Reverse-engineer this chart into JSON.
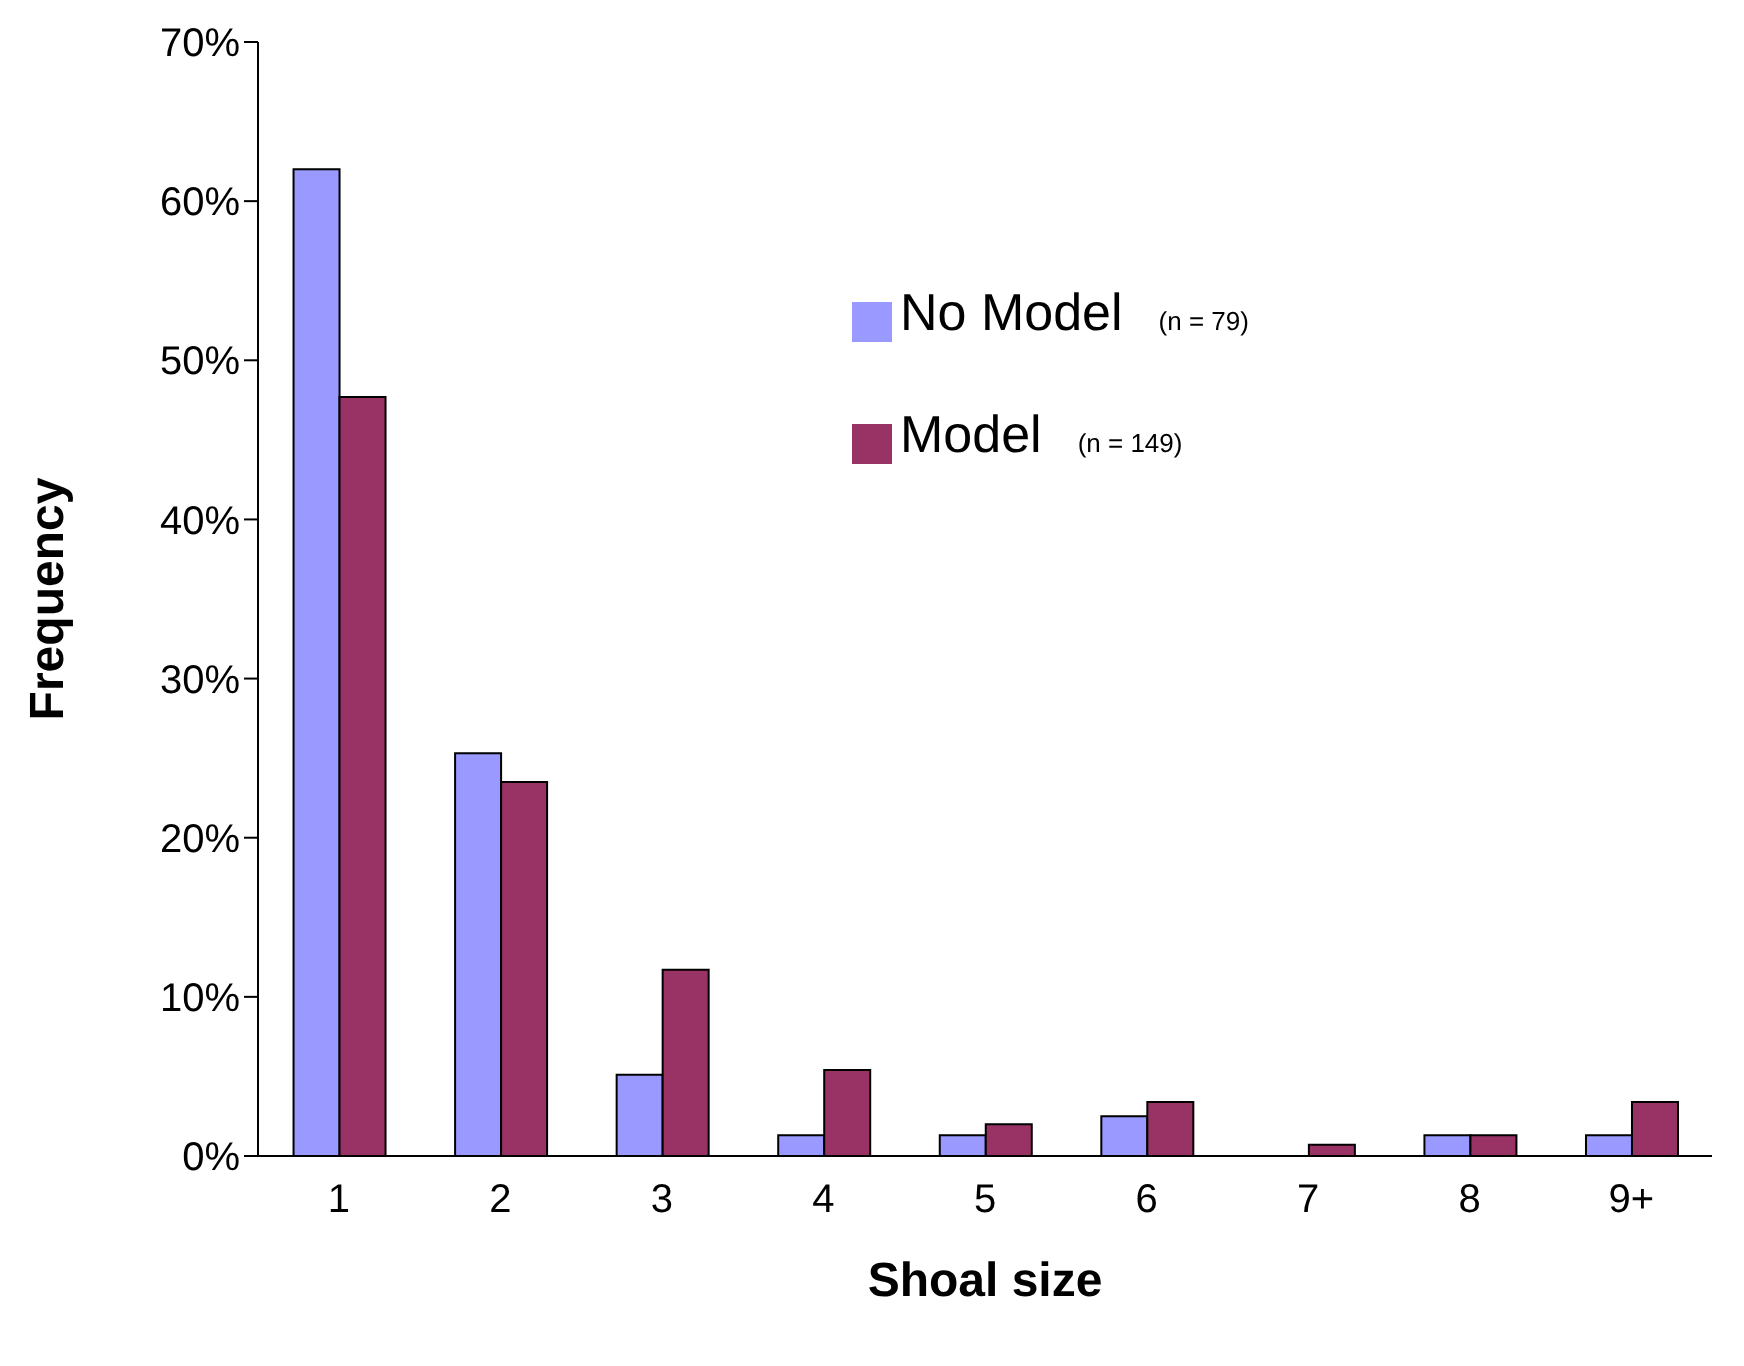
{
  "chart_data": {
    "type": "bar",
    "xlabel": "Shoal size",
    "ylabel": "Frequency",
    "categories": [
      "1",
      "2",
      "3",
      "4",
      "5",
      "6",
      "7",
      "8",
      "9+"
    ],
    "series": [
      {
        "name": "No Model",
        "color": "#9999ff",
        "values": [
          62.0,
          25.3,
          5.1,
          1.3,
          1.3,
          2.5,
          0,
          1.3,
          1.3
        ]
      },
      {
        "name": "Model",
        "color": "#993366",
        "values": [
          47.7,
          23.5,
          11.7,
          5.4,
          2.0,
          3.4,
          0.7,
          1.3,
          3.4
        ]
      }
    ],
    "annotations": [
      "(n = 79)",
      "(n = 149)"
    ],
    "ylim": [
      0,
      70
    ],
    "yticks": [
      {
        "value": 0,
        "label": "0%"
      },
      {
        "value": 10,
        "label": "10%"
      },
      {
        "value": 20,
        "label": "20%"
      },
      {
        "value": 30,
        "label": "30%"
      },
      {
        "value": 40,
        "label": "40%"
      },
      {
        "value": 50,
        "label": "50%"
      },
      {
        "value": 60,
        "label": "60%"
      },
      {
        "value": 70,
        "label": "70%"
      }
    ],
    "grid": false,
    "legend": "top right"
  }
}
